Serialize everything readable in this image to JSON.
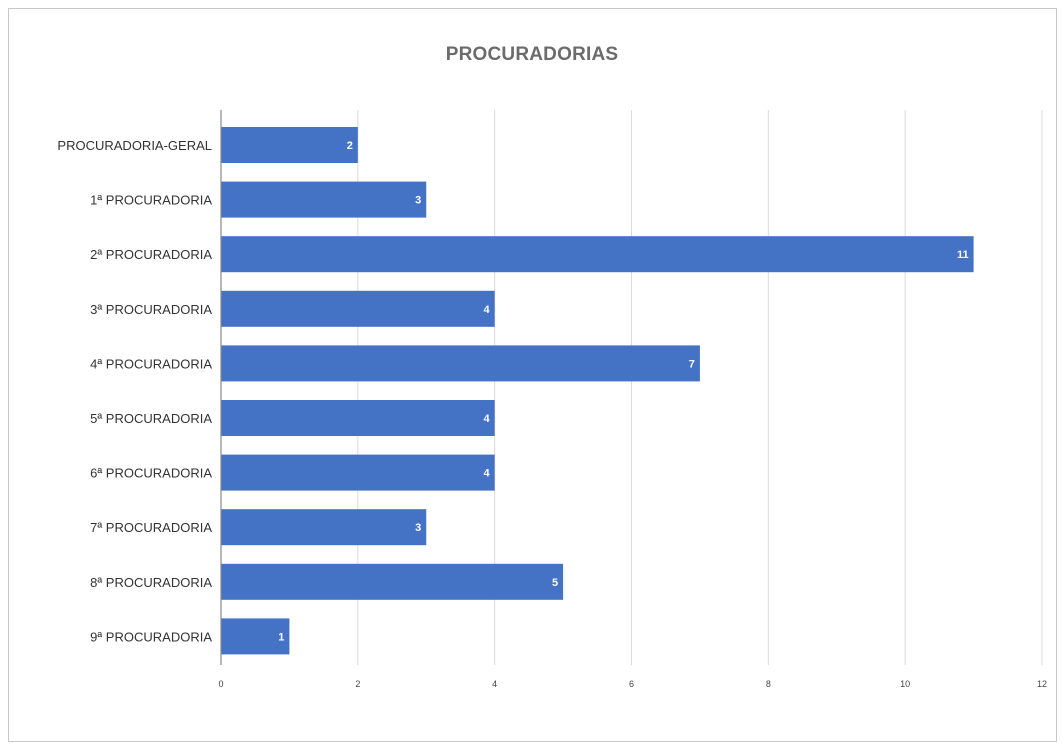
{
  "chart_data": {
    "type": "bar",
    "orientation": "horizontal",
    "title": "PROCURADORIAS",
    "categories": [
      "PROCURADORIA-GERAL",
      "1ª PROCURADORIA",
      "2ª PROCURADORIA",
      "3ª PROCURADORIA",
      "4ª PROCURADORIA",
      "5ª PROCURADORIA",
      "6ª PROCURADORIA",
      "7ª PROCURADORIA",
      "8ª PROCURADORIA",
      "9ª PROCURADORIA"
    ],
    "values": [
      2,
      3,
      11,
      4,
      7,
      4,
      4,
      3,
      5,
      1
    ],
    "xlim": [
      0,
      12
    ],
    "xticks": [
      0,
      2,
      4,
      6,
      8,
      10,
      12
    ],
    "xlabel": "",
    "ylabel": "",
    "grid": true,
    "data_labels": true,
    "bar_color": "#4472c4",
    "grid_color": "#d9d9d9",
    "axis_color": "#888888"
  }
}
